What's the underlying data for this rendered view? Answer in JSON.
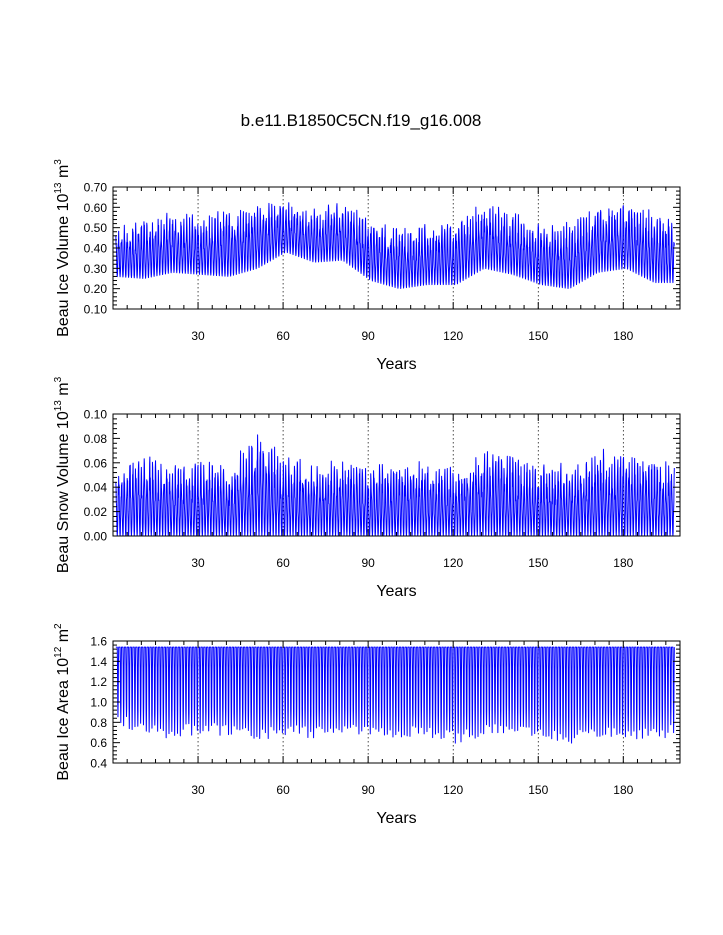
{
  "figure_title": "b.e11.B1850C5CN.f19_g16.008",
  "colors": {
    "series": "#0000ff",
    "axes": "#000000",
    "background": "#ffffff"
  },
  "chart_data": [
    {
      "type": "line",
      "ylabel": {
        "text": "Beau Ice Volume 10",
        "exponent": "13",
        "unit": " m",
        "unit_exponent": "3"
      },
      "xlabel": "Years",
      "xlim": [
        0,
        200
      ],
      "ylim": [
        0.1,
        0.7
      ],
      "x_ticks": [
        30,
        60,
        90,
        120,
        150,
        180
      ],
      "x_tick_labels": [
        "30",
        "60",
        "90",
        "120",
        "150",
        "180"
      ],
      "y_ticks": [
        0.1,
        0.2,
        0.3,
        0.4,
        0.5,
        0.6,
        0.7
      ],
      "y_tick_labels": [
        "0.10",
        "0.20",
        "0.30",
        "0.40",
        "0.50",
        "0.60",
        "0.70"
      ],
      "grid": "vertical dotted at x ticks",
      "series": [
        {
          "name": "Beau Ice Volume",
          "note": "monthly values, min/max envelope per year",
          "x": [
            0,
            10,
            20,
            30,
            40,
            50,
            60,
            70,
            80,
            90,
            100,
            110,
            120,
            130,
            140,
            150,
            160,
            170,
            180,
            190,
            200
          ],
          "annual_max": [
            0.5,
            0.55,
            0.58,
            0.56,
            0.6,
            0.62,
            0.64,
            0.6,
            0.63,
            0.56,
            0.52,
            0.52,
            0.55,
            0.64,
            0.58,
            0.52,
            0.53,
            0.62,
            0.63,
            0.58,
            0.55
          ],
          "annual_min": [
            0.26,
            0.25,
            0.28,
            0.27,
            0.26,
            0.3,
            0.38,
            0.33,
            0.34,
            0.24,
            0.2,
            0.22,
            0.22,
            0.3,
            0.27,
            0.22,
            0.2,
            0.28,
            0.3,
            0.23,
            0.23
          ]
        }
      ]
    },
    {
      "type": "line",
      "ylabel": {
        "text": "Beau Snow Volume 10",
        "exponent": "13",
        "unit": " m",
        "unit_exponent": "3"
      },
      "xlabel": "Years",
      "xlim": [
        0,
        200
      ],
      "ylim": [
        0.0,
        0.1
      ],
      "x_ticks": [
        30,
        60,
        90,
        120,
        150,
        180
      ],
      "x_tick_labels": [
        "30",
        "60",
        "90",
        "120",
        "150",
        "180"
      ],
      "y_ticks": [
        0.0,
        0.02,
        0.04,
        0.06,
        0.08,
        0.1
      ],
      "y_tick_labels": [
        "0.00",
        "0.02",
        "0.04",
        "0.06",
        "0.08",
        "0.10"
      ],
      "grid": "vertical dotted at x ticks",
      "series": [
        {
          "name": "Beau Snow Volume",
          "note": "monthly values, min/max envelope per year",
          "x": [
            0,
            10,
            20,
            30,
            40,
            50,
            60,
            70,
            80,
            90,
            100,
            110,
            120,
            130,
            140,
            150,
            160,
            170,
            180,
            190,
            200
          ],
          "annual_max": [
            0.055,
            0.07,
            0.06,
            0.062,
            0.06,
            0.085,
            0.068,
            0.06,
            0.065,
            0.058,
            0.06,
            0.062,
            0.06,
            0.075,
            0.07,
            0.06,
            0.06,
            0.072,
            0.07,
            0.065,
            0.06
          ],
          "annual_min": [
            0.0,
            0.0,
            0.0,
            0.0,
            0.0,
            0.0,
            0.0,
            0.0,
            0.0,
            0.0,
            0.0,
            0.0,
            0.0,
            0.0,
            0.0,
            0.0,
            0.0,
            0.0,
            0.0,
            0.0,
            0.0
          ]
        }
      ]
    },
    {
      "type": "line",
      "ylabel": {
        "text": "Beau Ice Area 10",
        "exponent": "12",
        "unit": " m",
        "unit_exponent": "2"
      },
      "xlabel": "Years",
      "xlim": [
        0,
        200
      ],
      "ylim": [
        0.4,
        1.6
      ],
      "x_ticks": [
        30,
        60,
        90,
        120,
        150,
        180
      ],
      "x_tick_labels": [
        "30",
        "60",
        "90",
        "120",
        "150",
        "180"
      ],
      "y_ticks": [
        0.4,
        0.6,
        0.8,
        1.0,
        1.2,
        1.4,
        1.6
      ],
      "y_tick_labels": [
        "0.4",
        "0.6",
        "0.8",
        "1.0",
        "1.2",
        "1.4",
        "1.6"
      ],
      "grid": "vertical dotted at x ticks",
      "series": [
        {
          "name": "Beau Ice Area",
          "note": "monthly values, min/max envelope per year",
          "x": [
            0,
            10,
            20,
            30,
            40,
            50,
            60,
            70,
            80,
            90,
            100,
            110,
            120,
            130,
            140,
            150,
            160,
            170,
            180,
            190,
            200
          ],
          "annual_max": [
            1.54,
            1.54,
            1.54,
            1.54,
            1.54,
            1.54,
            1.54,
            1.54,
            1.54,
            1.54,
            1.54,
            1.54,
            1.54,
            1.54,
            1.54,
            1.54,
            1.54,
            1.54,
            1.54,
            1.54,
            1.54
          ],
          "annual_min": [
            0.85,
            0.72,
            0.7,
            0.75,
            0.72,
            0.68,
            0.72,
            0.7,
            0.75,
            0.72,
            0.7,
            0.72,
            0.65,
            0.72,
            0.75,
            0.7,
            0.65,
            0.72,
            0.7,
            0.68,
            0.75
          ]
        }
      ]
    }
  ]
}
